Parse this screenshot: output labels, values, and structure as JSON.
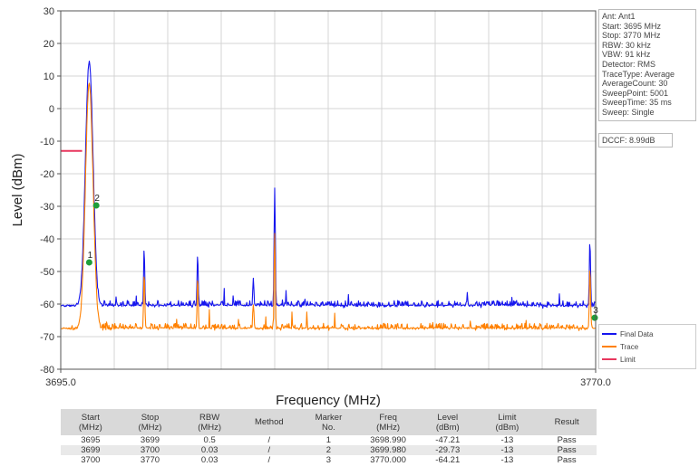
{
  "info_box": [
    "Ant: Ant1",
    "Start: 3695 MHz",
    "Stop: 3770 MHz",
    "RBW: 30 kHz",
    "VBW: 91 kHz",
    "Detector: RMS",
    "TraceType: Average",
    "AverageCount: 30",
    "SweepPoint: 5001",
    "SweepTime: 35 ms",
    "Sweep: Single"
  ],
  "dccf": "DCCF: 8.99dB",
  "colors": {
    "final_data": "#1515ee",
    "trace": "#ff8000",
    "limit": "#e8375e",
    "marker": "#1f9e3a",
    "grid": "#d4d4d4"
  },
  "chart_data": {
    "type": "line",
    "xlabel": "Frequency (MHz)",
    "ylabel": "Level (dBm)",
    "xlim": [
      3695.0,
      3770.0
    ],
    "ylim": [
      -80,
      30
    ],
    "x_tick_labels": [
      "3695.0",
      "3770.0"
    ],
    "y_ticks": [
      30,
      20,
      10,
      0,
      -10,
      -20,
      -30,
      -40,
      -50,
      -60,
      -70,
      -80
    ],
    "grid": true,
    "legend_placement": "bottom-right",
    "series": [
      {
        "name": "Final Data",
        "color": "#1515ee",
        "noise_floor": -61,
        "start_level": -64,
        "peaks": [
          {
            "x": 3699.0,
            "y": 15
          },
          {
            "x": 3706.7,
            "y": -43
          },
          {
            "x": 3714.2,
            "y": -45
          },
          {
            "x": 3722.0,
            "y": -52
          },
          {
            "x": 3725.0,
            "y": -24
          },
          {
            "x": 3769.2,
            "y": -41
          }
        ]
      },
      {
        "name": "Trace",
        "color": "#ff8000",
        "noise_floor": -68,
        "start_level": -71,
        "peaks": [
          {
            "x": 3699.0,
            "y": 8
          },
          {
            "x": 3706.7,
            "y": -50
          },
          {
            "x": 3714.2,
            "y": -52
          },
          {
            "x": 3722.0,
            "y": -60
          },
          {
            "x": 3725.0,
            "y": -39
          },
          {
            "x": 3769.2,
            "y": -49
          }
        ]
      },
      {
        "name": "Limit",
        "color": "#e8375e",
        "segments": [
          {
            "x": [
              3695.0,
              3698.0
            ],
            "y": -13
          }
        ]
      }
    ],
    "markers": [
      {
        "label": "1",
        "x": 3698.99,
        "y": -47.21
      },
      {
        "label": "2",
        "x": 3699.98,
        "y": -29.73
      },
      {
        "label": "3",
        "x": 3770.0,
        "y": -64.21
      }
    ]
  },
  "table": {
    "headers": [
      [
        "Start",
        "(MHz)"
      ],
      [
        "Stop",
        "(MHz)"
      ],
      [
        "RBW",
        "(MHz)"
      ],
      [
        "Method"
      ],
      [
        "Marker",
        "No."
      ],
      [
        "Freq",
        "(MHz)"
      ],
      [
        "Level",
        "(dBm)"
      ],
      [
        "Limit",
        "(dBm)"
      ],
      [
        "Result"
      ]
    ],
    "rows": [
      [
        "3695",
        "3699",
        "0.5",
        "/",
        "1",
        "3698.990",
        "-47.21",
        "-13",
        "Pass"
      ],
      [
        "3699",
        "3700",
        "0.03",
        "/",
        "2",
        "3699.980",
        "-29.73",
        "-13",
        "Pass"
      ],
      [
        "3700",
        "3770",
        "0.03",
        "/",
        "3",
        "3770.000",
        "-64.21",
        "-13",
        "Pass"
      ]
    ]
  }
}
